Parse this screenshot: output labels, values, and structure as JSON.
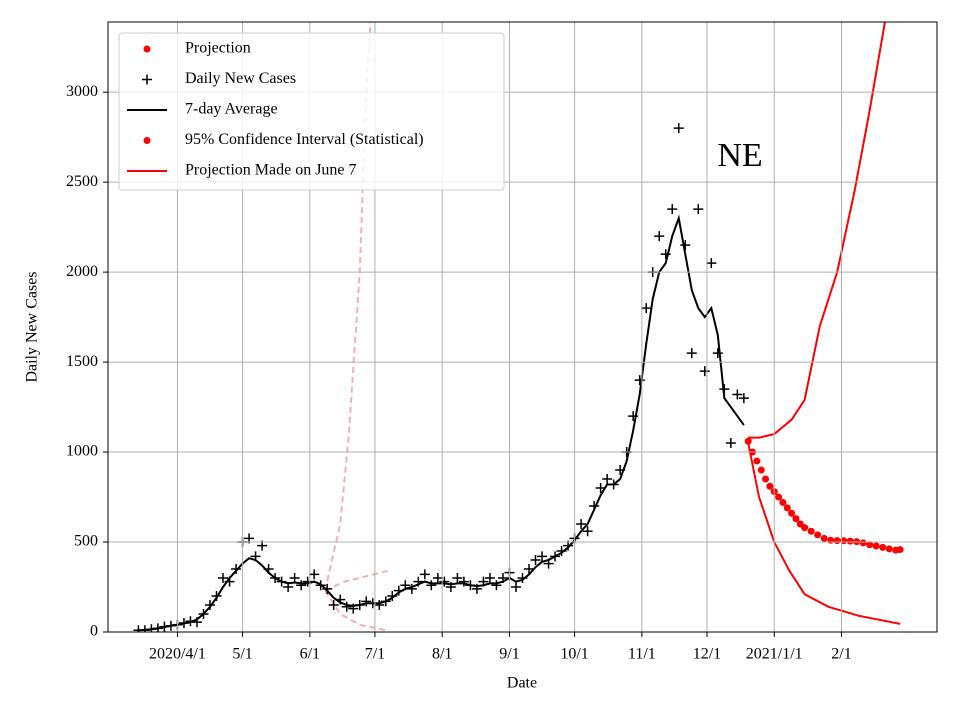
{
  "chart_data": {
    "type": "line",
    "annotation": "NE",
    "xlabel": "Date",
    "ylabel": "Daily New Cases",
    "xlim": [
      59,
      441
    ],
    "ylim": [
      0,
      3390
    ],
    "xticks": [
      {
        "value": 91,
        "label": "2020/4/1"
      },
      {
        "value": 121,
        "label": "5/1"
      },
      {
        "value": 152,
        "label": "6/1"
      },
      {
        "value": 182,
        "label": "7/1"
      },
      {
        "value": 213,
        "label": "8/1"
      },
      {
        "value": 244,
        "label": "9/1"
      },
      {
        "value": 274,
        "label": "10/1"
      },
      {
        "value": 305,
        "label": "11/1"
      },
      {
        "value": 335,
        "label": "12/1"
      },
      {
        "value": 366,
        "label": "2021/1/1"
      },
      {
        "value": 397,
        "label": "2/1"
      }
    ],
    "yticks": [
      0,
      500,
      1000,
      1500,
      2000,
      2500,
      3000
    ],
    "grid": true,
    "legend": "upper left",
    "projection": {
      "name": "Projection",
      "color": "#ff0000",
      "x": [
        354,
        356,
        358,
        360,
        362,
        364,
        366,
        368,
        370,
        372,
        374,
        376,
        378,
        380,
        383,
        386,
        389,
        392,
        395,
        398,
        401,
        404,
        407,
        410,
        413,
        416,
        419,
        422,
        424
      ],
      "values": [
        1060,
        1000,
        950,
        900,
        850,
        810,
        780,
        750,
        720,
        690,
        660,
        630,
        600,
        580,
        560,
        540,
        520,
        510,
        508,
        507,
        505,
        502,
        495,
        485,
        478,
        470,
        462,
        455,
        458
      ]
    },
    "cases": {
      "name": "Daily New Cases",
      "color": "#000000",
      "x": [
        73,
        76,
        79,
        82,
        85,
        88,
        91,
        94,
        97,
        100,
        103,
        106,
        109,
        112,
        115,
        118,
        121,
        124,
        127,
        130,
        133,
        136,
        139,
        142,
        145,
        148,
        151,
        154,
        157,
        160,
        163,
        166,
        169,
        172,
        175,
        178,
        181,
        184,
        187,
        190,
        193,
        196,
        199,
        202,
        205,
        208,
        211,
        214,
        217,
        220,
        223,
        226,
        229,
        232,
        235,
        238,
        241,
        244,
        247,
        250,
        253,
        256,
        259,
        262,
        265,
        268,
        271,
        274,
        277,
        280,
        283,
        286,
        289,
        292,
        295,
        298,
        301,
        304,
        307,
        310,
        313,
        316,
        319,
        322,
        325,
        328,
        331,
        334,
        337,
        340,
        343,
        346,
        349,
        352
      ],
      "values": [
        10,
        10,
        15,
        20,
        30,
        35,
        40,
        50,
        60,
        55,
        100,
        150,
        200,
        300,
        280,
        350,
        500,
        520,
        420,
        480,
        350,
        300,
        280,
        250,
        300,
        260,
        280,
        320,
        260,
        240,
        150,
        180,
        140,
        130,
        150,
        170,
        160,
        150,
        170,
        200,
        230,
        260,
        240,
        280,
        320,
        260,
        300,
        280,
        250,
        300,
        280,
        260,
        240,
        280,
        300,
        260,
        300,
        330,
        250,
        300,
        350,
        400,
        420,
        380,
        420,
        450,
        480,
        520,
        600,
        560,
        700,
        800,
        850,
        820,
        900,
        1000,
        1200,
        1400,
        1800,
        2000,
        2200,
        2100,
        2350,
        2800,
        2150,
        1550,
        2350,
        1450,
        2050,
        1550,
        1350,
        1050,
        1320,
        1300
      ]
    },
    "average": {
      "name": "7-day Average",
      "color": "#000000",
      "x": [
        73,
        76,
        79,
        82,
        85,
        88,
        91,
        94,
        97,
        100,
        103,
        106,
        109,
        112,
        115,
        118,
        121,
        124,
        127,
        130,
        133,
        136,
        139,
        142,
        145,
        148,
        151,
        154,
        157,
        160,
        163,
        166,
        169,
        172,
        175,
        178,
        181,
        184,
        187,
        190,
        193,
        196,
        199,
        202,
        205,
        208,
        211,
        214,
        217,
        220,
        223,
        226,
        229,
        232,
        235,
        238,
        241,
        244,
        247,
        250,
        253,
        256,
        259,
        262,
        265,
        268,
        271,
        274,
        277,
        280,
        283,
        286,
        289,
        292,
        295,
        298,
        301,
        304,
        307,
        310,
        313,
        316,
        319,
        322,
        325,
        328,
        331,
        334,
        337,
        340,
        343,
        346,
        349,
        352
      ],
      "values": [
        10,
        12,
        15,
        20,
        28,
        35,
        40,
        48,
        55,
        70,
        100,
        140,
        190,
        250,
        300,
        340,
        380,
        410,
        400,
        370,
        330,
        300,
        280,
        270,
        275,
        270,
        270,
        280,
        265,
        230,
        190,
        165,
        150,
        145,
        150,
        160,
        160,
        160,
        170,
        190,
        220,
        240,
        250,
        265,
        280,
        270,
        270,
        270,
        265,
        270,
        270,
        260,
        255,
        260,
        270,
        270,
        280,
        300,
        280,
        290,
        320,
        360,
        390,
        400,
        420,
        440,
        470,
        510,
        560,
        600,
        680,
        760,
        820,
        820,
        850,
        950,
        1120,
        1320,
        1600,
        1850,
        2000,
        2050,
        2200,
        2300,
        2100,
        1900,
        1800,
        1750,
        1800,
        1650,
        1300,
        1250,
        1200,
        1150
      ]
    },
    "confidence_interval": {
      "name": "95% Confidence Interval (Statistical)",
      "color": "#ff0000",
      "x_upper": [
        354,
        359,
        366,
        374,
        380,
        387,
        395,
        403,
        410,
        417
      ],
      "upper": [
        1080,
        1080,
        1100,
        1180,
        1290,
        1700,
        2000,
        2450,
        2900,
        3390
      ],
      "x_lower": [
        354,
        359,
        366,
        373,
        380,
        391,
        405,
        424
      ],
      "lower": [
        1050,
        750,
        500,
        340,
        210,
        140,
        90,
        45
      ]
    },
    "june_projection": {
      "name": "Projection Made on June 7",
      "color": "#ff0000",
      "plot_color": "#f4b0b0",
      "x_upper": [
        159,
        166,
        170,
        175,
        178,
        180
      ],
      "upper": [
        230,
        600,
        1100,
        2000,
        3000,
        3390
      ],
      "x_mid": [
        159,
        168,
        188
      ],
      "mid": [
        230,
        280,
        340
      ],
      "x_lower": [
        159,
        166,
        175,
        187
      ],
      "lower": [
        230,
        100,
        40,
        10
      ]
    }
  }
}
